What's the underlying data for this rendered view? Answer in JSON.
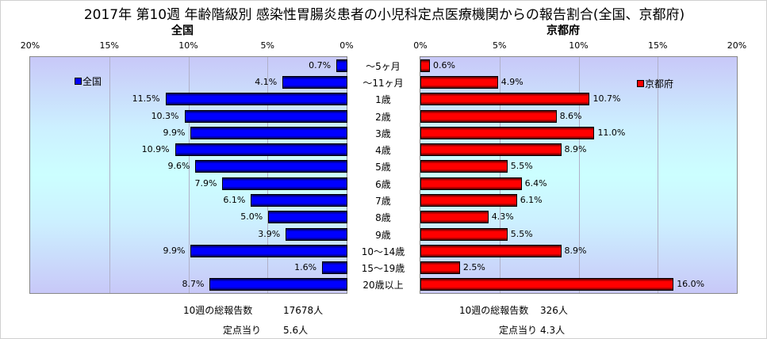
{
  "chart_data": {
    "type": "bar",
    "title": "2017年 第10週 年齢階級別 感染性胃腸炎患者の小児科定点医療機関からの報告割合(全国、京都府)",
    "categories": [
      "～5ヶ月",
      "～11ヶ月",
      "1歳",
      "2歳",
      "3歳",
      "4歳",
      "5歳",
      "6歳",
      "7歳",
      "8歳",
      "9歳",
      "10～14歳",
      "15～19歳",
      "20歳以上"
    ],
    "xlim": [
      0,
      20
    ],
    "ticks": [
      "20%",
      "15%",
      "10%",
      "5%",
      "0%"
    ],
    "ticks_right": [
      "0%",
      "5%",
      "10%",
      "15%",
      "20%"
    ],
    "series": [
      {
        "name": "全国",
        "panel_title": "全国",
        "color": "#0000ff",
        "values": [
          0.7,
          4.1,
          11.5,
          10.3,
          9.9,
          10.9,
          9.6,
          7.9,
          6.1,
          5.0,
          3.9,
          9.9,
          1.6,
          8.7
        ],
        "labels": [
          "0.7%",
          "4.1%",
          "11.5%",
          "10.3%",
          "9.9%",
          "10.9%",
          "9.6%",
          "7.9%",
          "6.1%",
          "5.0%",
          "3.9%",
          "9.9%",
          "1.6%",
          "8.7%"
        ],
        "total_label": "10週の総報告数",
        "total": "17678人",
        "per_label": "定点当り",
        "per": "5.6人"
      },
      {
        "name": "京都府",
        "panel_title": "京都府",
        "color": "#ff0000",
        "values": [
          0.6,
          4.9,
          10.7,
          8.6,
          11.0,
          8.9,
          5.5,
          6.4,
          6.1,
          4.3,
          5.5,
          8.9,
          2.5,
          16.0
        ],
        "labels": [
          "0.6%",
          "4.9%",
          "10.7%",
          "8.6%",
          "11.0%",
          "8.9%",
          "5.5%",
          "6.4%",
          "6.1%",
          "4.3%",
          "5.5%",
          "8.9%",
          "2.5%",
          "16.0%"
        ],
        "total_label": "10週の総報告数",
        "total": "326人",
        "per_label": "定点当り",
        "per": "4.3人"
      }
    ]
  }
}
